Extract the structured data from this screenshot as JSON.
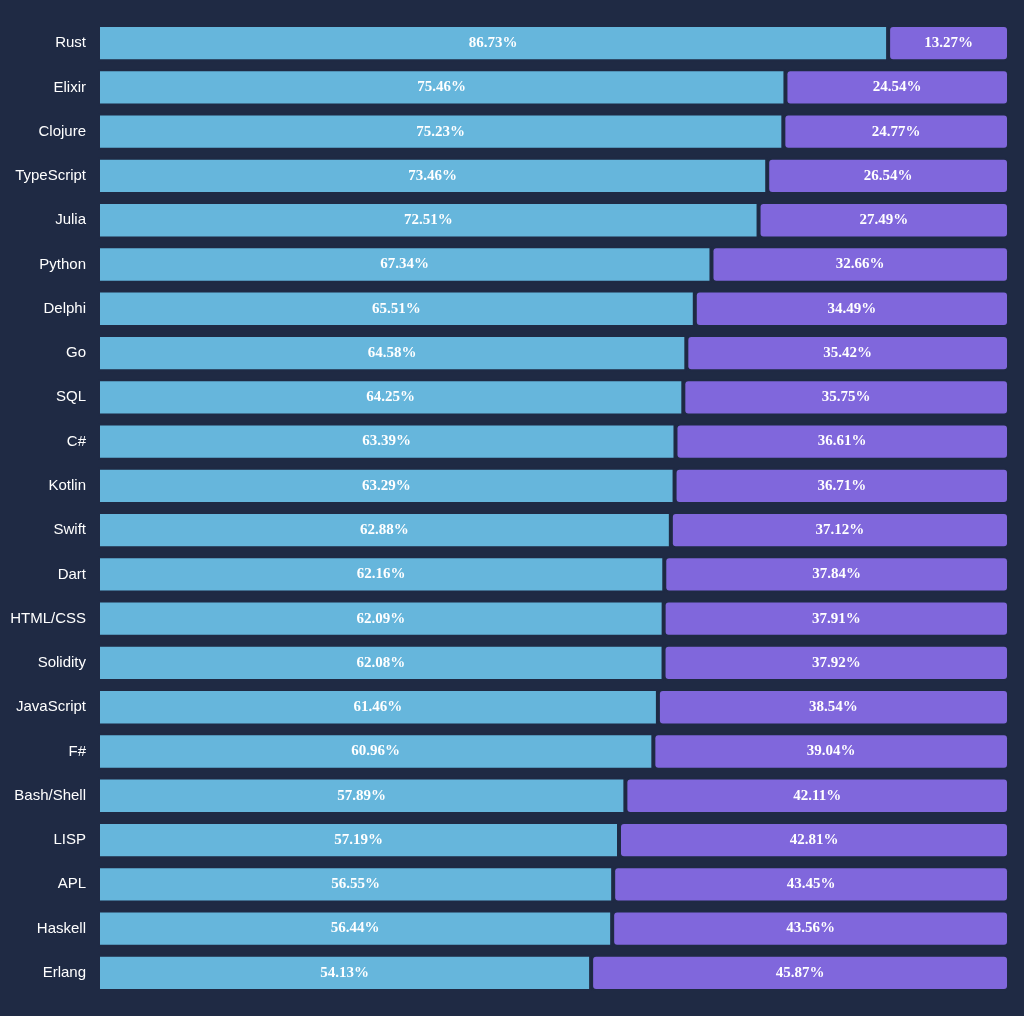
{
  "chart_data": {
    "type": "bar",
    "orientation": "horizontal",
    "stacked": true,
    "data_labels": true,
    "grid": false,
    "tick_labels": "y",
    "categories": [
      "Rust",
      "Elixir",
      "Clojure",
      "TypeScript",
      "Julia",
      "Python",
      "Delphi",
      "Go",
      "SQL",
      "C#",
      "Kotlin",
      "Swift",
      "Dart",
      "HTML/CSS",
      "Solidity",
      "JavaScript",
      "F#",
      "Bash/Shell",
      "LISP",
      "APL",
      "Haskell",
      "Erlang"
    ],
    "xlim": [
      0,
      100
    ],
    "series": [
      {
        "color": "#66b6dc",
        "values": [
          86.73,
          75.46,
          75.23,
          73.46,
          72.51,
          67.34,
          65.51,
          64.58,
          64.25,
          63.39,
          63.29,
          62.88,
          62.16,
          62.09,
          62.08,
          61.46,
          60.96,
          57.89,
          57.19,
          56.55,
          56.44,
          54.13
        ],
        "value_labels": [
          "86.73%",
          "75.46%",
          "75.23%",
          "73.46%",
          "72.51%",
          "67.34%",
          "65.51%",
          "64.58%",
          "64.25%",
          "63.39%",
          "63.29%",
          "62.88%",
          "62.16%",
          "62.09%",
          "62.08%",
          "61.46%",
          "60.96%",
          "57.89%",
          "57.19%",
          "56.55%",
          "56.44%",
          "54.13%"
        ]
      },
      {
        "color": "#8067dc",
        "values": [
          13.27,
          24.54,
          24.77,
          26.54,
          27.49,
          32.66,
          34.49,
          35.42,
          35.75,
          36.61,
          36.71,
          37.12,
          37.84,
          37.91,
          37.92,
          38.54,
          39.04,
          42.11,
          42.81,
          43.45,
          43.56,
          45.87
        ],
        "value_labels": [
          "13.27%",
          "24.54%",
          "24.77%",
          "26.54%",
          "27.49%",
          "32.66%",
          "34.49%",
          "35.42%",
          "35.75%",
          "36.61%",
          "36.71%",
          "37.12%",
          "37.84%",
          "37.91%",
          "37.92%",
          "38.54%",
          "39.04%",
          "42.11%",
          "42.81%",
          "43.45%",
          "43.56%",
          "45.87%"
        ]
      }
    ]
  }
}
